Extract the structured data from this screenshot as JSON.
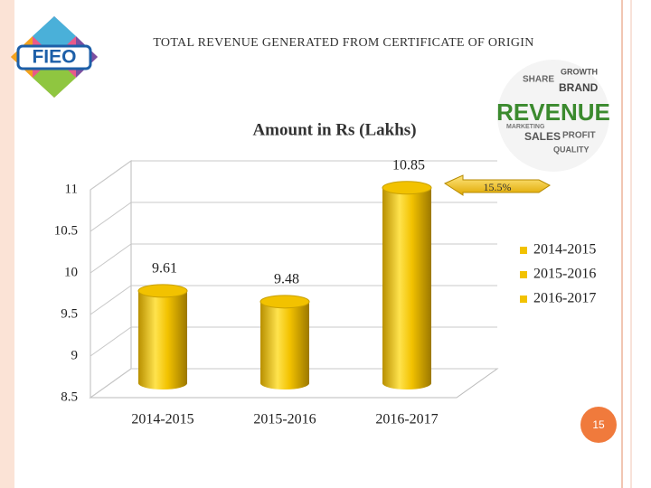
{
  "slide": {
    "title": "TOTAL REVENUE GENERATED FROM CERTIFICATE OF ORIGIN",
    "logo": "FIEO",
    "page_number": "15",
    "word_cloud": [
      "REVENUE",
      "SALES",
      "SHARE",
      "BRAND",
      "GROWTH",
      "PROFIT",
      "MARKETING",
      "QUALITY"
    ]
  },
  "chart_data": {
    "type": "bar3d",
    "title": "Amount in Rs (Lakhs)",
    "categories": [
      "2014-2015",
      "2015-2016",
      "2016-2017"
    ],
    "series": [
      {
        "name": "2014-2015",
        "color": "#f2c200",
        "values": [
          9.61,
          null,
          null
        ]
      },
      {
        "name": "2015-2016",
        "color": "#f2c200",
        "values": [
          null,
          9.48,
          null
        ]
      },
      {
        "name": "2016-2017",
        "color": "#f2c200",
        "values": [
          null,
          null,
          10.85
        ]
      }
    ],
    "ylim": [
      8.5,
      11
    ],
    "yticks": [
      8.5,
      9,
      9.5,
      10,
      10.5,
      11
    ],
    "grid": true,
    "legend": "right",
    "annotation": "15.5%"
  }
}
